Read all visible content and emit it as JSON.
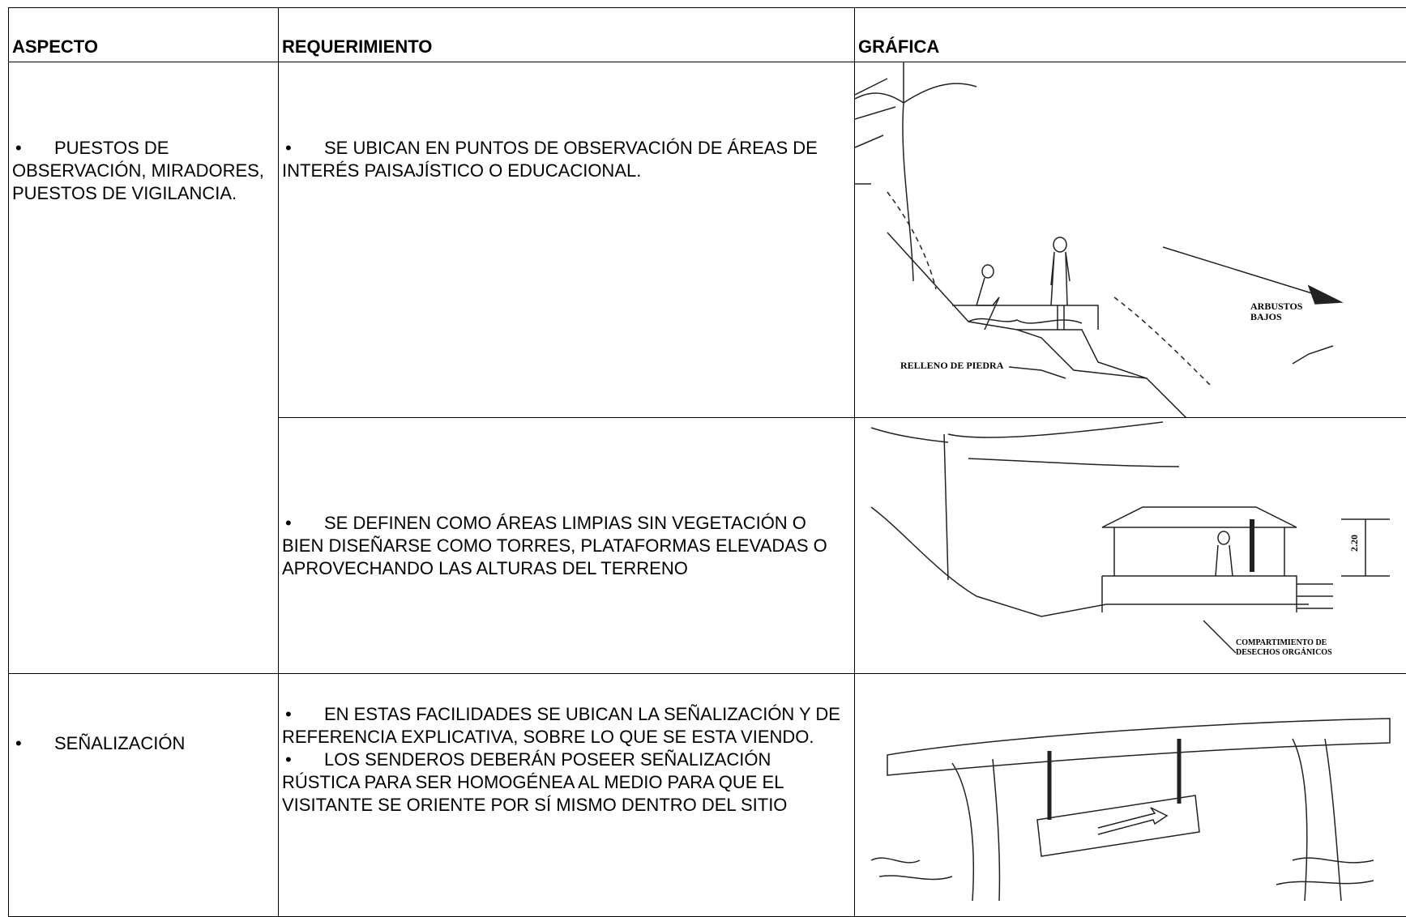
{
  "table": {
    "headers": [
      "ASPECTO",
      "REQUERIMIENTO",
      "GRÁFICA"
    ],
    "rows": [
      {
        "aspect": "PUESTOS DE OBSERVACIÓN, MIRADORES, PUESTOS DE VIGILANCIA.",
        "requirements": [
          "SE UBICAN EN PUNTOS DE OBSERVACIÓN DE ÁREAS DE INTERÉS PAISAJÍSTICO O EDUCACIONAL."
        ],
        "figure_labels": [
          "ARBUSTOS",
          "BAJOS",
          "RELLENO DE PIEDRA"
        ]
      },
      {
        "requirements": [
          "SE DEFINEN COMO ÁREAS LIMPIAS SIN VEGETACIÓN O BIEN DISEÑARSE COMO TORRES, PLATAFORMAS ELEVADAS O APROVECHANDO LAS ALTURAS DEL TERRENO"
        ],
        "figure_labels": [
          "2.20",
          "COMPARTIMIENTO DE",
          "DESECHOS ORGÁNICOS"
        ]
      },
      {
        "aspect": "SEÑALIZACIÓN",
        "requirements": [
          "EN ESTAS FACILIDADES SE UBICAN LA SEÑALIZACIÓN Y DE REFERENCIA EXPLICATIVA, SOBRE LO QUE SE ESTA VIENDO.",
          "LOS SENDEROS DEBERÁN POSEER SEÑALIZACIÓN RÚSTICA PARA SER HOMOGÉNEA AL MEDIO PARA QUE EL VISITANTE SE ORIENTE POR SÍ MISMO DENTRO DEL SITIO"
        ]
      }
    ]
  }
}
